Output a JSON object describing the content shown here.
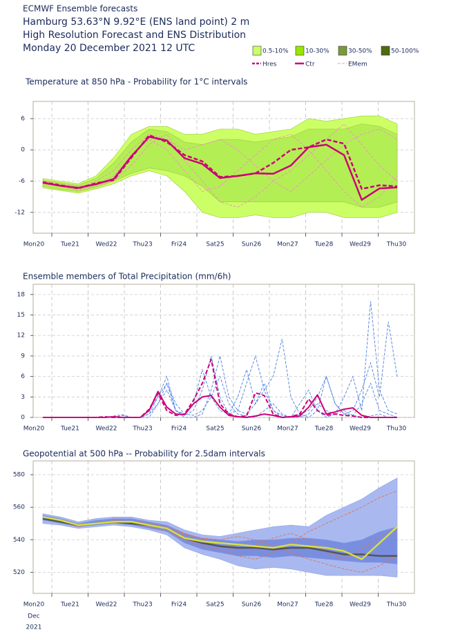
{
  "header": {
    "source": "ECMWF Ensemble forecasts",
    "location": "Hamburg 53.63°N 9.92°E (ENS land point) 2 m",
    "product": "High Resolution Forecast and ENS Distribution",
    "date": "Monday 20 December 2021 12 UTC"
  },
  "legend": {
    "shading": [
      {
        "name": "0.5-10%",
        "color": "#ccff66"
      },
      {
        "name": "10-30%",
        "color": "#99e600"
      },
      {
        "name": "30-50%",
        "color": "#7a9a3a"
      },
      {
        "name": "50-100%",
        "color": "#4d6b10"
      }
    ],
    "lines": [
      {
        "name": "Hres",
        "color": "#cc0077",
        "dash": true
      },
      {
        "name": "Ctr",
        "color": "#cc0077",
        "dash": false
      },
      {
        "name": "EMem",
        "color": "#f090c0",
        "dash": true
      }
    ]
  },
  "chart_data": [
    {
      "type": "band_line",
      "title": "Temperature at 850 hPa - Probability for 1°C intervals",
      "categories": [
        "Mon20",
        "Tue21",
        "Wed22",
        "Thu23",
        "Fri24",
        "Sat25",
        "Sun26",
        "Mon27",
        "Tue28",
        "Wed29",
        "Thu30"
      ],
      "category_colors": [
        "#1a2a5a",
        "#1a2a5a",
        "#1a2a5a",
        "#1a2a5a",
        "#1a2a5a",
        "#1a2a5a",
        "#dd0000",
        "#1a2a5a",
        "#1a2a5a",
        "#1a2a5a",
        "#1a2a5a"
      ],
      "x": [
        0,
        12,
        24,
        36,
        48,
        60,
        72,
        84,
        96,
        108,
        120,
        132,
        144,
        156,
        168,
        180,
        192,
        204,
        216,
        228,
        240
      ],
      "ylim": [
        -16,
        9.3
      ],
      "yticks": [
        6,
        0,
        -6,
        -12
      ],
      "grid": true,
      "bands": [
        {
          "color": "#ccff66",
          "lower": [
            -7.3,
            -7.8,
            -8.3,
            -7.5,
            -6.5,
            -5,
            -4,
            -5,
            -8,
            -12,
            -13,
            -13,
            -12.5,
            -13,
            -13,
            -12,
            -12,
            -13,
            -13,
            -13,
            -12
          ],
          "upper": [
            -5.5,
            -6,
            -6.5,
            -5,
            -1.5,
            3,
            4.5,
            4.5,
            3,
            3,
            4,
            4,
            3,
            3.5,
            4,
            6,
            5.5,
            6,
            6.5,
            6.5,
            5
          ]
        },
        {
          "color": "#b4ee55",
          "lower": [
            -7,
            -7.6,
            -8,
            -7.2,
            -6,
            -4.5,
            -3.5,
            -4,
            -5,
            -7,
            -10,
            -10,
            -10,
            -10,
            -10,
            -10,
            -10,
            -10,
            -11,
            -11,
            -10
          ],
          "upper": [
            -5.8,
            -6.3,
            -6.8,
            -5.5,
            -2.5,
            1.5,
            4,
            3.5,
            1.5,
            1,
            2,
            2,
            1.5,
            2,
            2.5,
            4,
            4,
            4,
            5,
            4.5,
            3
          ]
        }
      ],
      "members": [
        {
          "color": "#f090c0",
          "values": [
            -6,
            -7,
            -7.5,
            -6,
            -4,
            0,
            3,
            2,
            0,
            1,
            2,
            0,
            -3,
            -6,
            -8,
            -5,
            -2,
            1,
            3,
            4,
            2
          ]
        },
        {
          "color": "#f090c0",
          "values": [
            -6.5,
            -7,
            -7.8,
            -7,
            -6,
            -3,
            1,
            3,
            -2,
            -6,
            -10,
            -11,
            -9,
            -6,
            -4,
            -1,
            2,
            5,
            1,
            -3,
            -6
          ]
        },
        {
          "color": "#f090c0",
          "values": [
            -6,
            -6.5,
            -7,
            -6.5,
            -5,
            -1,
            2,
            0,
            -4,
            -8,
            -7,
            -4,
            -1,
            2,
            3,
            0,
            -4,
            -8,
            -11,
            -9,
            -5
          ]
        }
      ],
      "series": [
        {
          "color": "#cc0077",
          "dash": true,
          "values": [
            -6.2,
            -6.8,
            -7.4,
            -6.4,
            -5.8,
            -1.5,
            2.8,
            1.5,
            -1,
            -2.2,
            -5.2,
            -5,
            -4.5,
            -2.5,
            0,
            0.5,
            2,
            1.2,
            -7.5,
            -6.8,
            -7
          ]
        },
        {
          "color": "#cc0077",
          "dash": false,
          "values": [
            -6.3,
            -6.9,
            -7.3,
            -6.6,
            -5.6,
            -1.2,
            2.5,
            1.8,
            -1.6,
            -2.7,
            -5.4,
            -5,
            -4.5,
            -4.6,
            -3,
            0.5,
            1,
            -1,
            -9.6,
            -7.4,
            -7.2
          ]
        }
      ]
    },
    {
      "type": "line",
      "title": "Ensemble members of Total Precipitation (mm/6h)",
      "categories": [
        "Mon20",
        "Tue21",
        "Wed22",
        "Thu23",
        "Fri24",
        "Sat25",
        "Sun26",
        "Mon27",
        "Tue28",
        "Wed29",
        "Thu30"
      ],
      "category_colors": [
        "#1a2a5a",
        "#1a2a5a",
        "#1a2a5a",
        "#1a2a5a",
        "#1a2a5a",
        "#1a2a5a",
        "#dd0000",
        "#1a2a5a",
        "#1a2a5a",
        "#1a2a5a",
        "#1a2a5a"
      ],
      "x": [
        0,
        6,
        12,
        18,
        24,
        30,
        36,
        42,
        48,
        54,
        60,
        66,
        72,
        78,
        84,
        90,
        96,
        102,
        108,
        114,
        120,
        126,
        132,
        138,
        144,
        150,
        156,
        162,
        168,
        174,
        180,
        186,
        192,
        198,
        204,
        210,
        216,
        222,
        228,
        234,
        240
      ],
      "ylim": [
        0,
        19.5
      ],
      "yticks": [
        0,
        3,
        6,
        9,
        12,
        15,
        18
      ],
      "grid": true,
      "members": [
        {
          "color": "#4a7ee0",
          "values": [
            0,
            0,
            0,
            0,
            0,
            0,
            0,
            0,
            0.2,
            0.4,
            0,
            0,
            0.5,
            2,
            5,
            2,
            0.5,
            0.3,
            1,
            3,
            6,
            2,
            0.5,
            0.2,
            0,
            1,
            2,
            0.5,
            0,
            0,
            0.5,
            2,
            1,
            0.5,
            3,
            6,
            1,
            17,
            4,
            1,
            0.5
          ]
        },
        {
          "color": "#4a7ee0",
          "values": [
            0,
            0,
            0,
            0,
            0,
            0,
            0,
            0,
            0,
            0,
            0,
            0,
            1,
            3,
            6,
            1,
            0,
            0,
            0.5,
            4,
            9,
            3,
            1,
            0.5,
            2,
            5,
            1,
            0,
            0,
            0.5,
            1,
            3,
            6,
            2,
            0.5,
            1,
            4,
            8,
            3,
            14,
            6
          ]
        },
        {
          "color": "#4a7ee0",
          "values": [
            0,
            0,
            0,
            0,
            0,
            0,
            0,
            0,
            0,
            0.3,
            0,
            0,
            0,
            2,
            4,
            1,
            0.5,
            2,
            7,
            3,
            1,
            0.5,
            3,
            7,
            2,
            4,
            6,
            11.5,
            3,
            0.5,
            0,
            1,
            6,
            2,
            0.5,
            0.3,
            2,
            5,
            1,
            0.5,
            0
          ]
        },
        {
          "color": "#4a7ee0",
          "values": [
            0,
            0,
            0,
            0,
            0,
            0,
            0,
            0,
            0,
            0,
            0,
            0,
            0.5,
            3,
            5,
            1,
            0.3,
            1,
            4,
            9,
            3,
            0.5,
            1,
            5,
            9,
            4,
            1,
            0.3,
            0,
            2,
            4,
            1,
            0,
            0.5,
            1,
            0.3,
            0,
            0.2,
            0.5,
            0,
            0
          ]
        }
      ],
      "series": [
        {
          "color": "#cc0077",
          "dash": true,
          "values": [
            0,
            0,
            0,
            0,
            0,
            0,
            0,
            0.1,
            0,
            0,
            0,
            0,
            1.2,
            3.5,
            1,
            0.3,
            0.5,
            2.5,
            5,
            8.5,
            2,
            0.5,
            0.1,
            0.2,
            3.6,
            3.2,
            0.5,
            0,
            0.1,
            0.5,
            2.7,
            1,
            0.3,
            0.5,
            0.3,
            0.2,
            0,
            0,
            0,
            0,
            0
          ]
        },
        {
          "color": "#cc0077",
          "dash": false,
          "values": [
            0,
            0,
            0,
            0,
            0,
            0,
            0,
            0,
            0.1,
            0,
            0,
            0,
            1,
            3.8,
            1.5,
            0.5,
            0.4,
            2,
            3,
            3.2,
            1.5,
            0.3,
            0.1,
            0,
            0.2,
            0.5,
            0.3,
            0,
            0.1,
            0.2,
            1.5,
            3.3,
            0.5,
            0.8,
            1.2,
            1.4,
            0.3,
            0,
            0,
            0,
            0
          ]
        }
      ]
    },
    {
      "type": "band_line",
      "title": "Geopotential at 500 hPa -- Probability for 2.5dam intervals",
      "categories": [
        "Mon20",
        "Tue21",
        "Wed22",
        "Thu23",
        "Fri24",
        "Sat25",
        "Sun26",
        "Mon27",
        "Tue28",
        "Wed29",
        "Thu30"
      ],
      "category_colors": [
        "#1a2a5a",
        "#1a2a5a",
        "#1a2a5a",
        "#1a2a5a",
        "#1a2a5a",
        "#1a2a5a",
        "#dd0000",
        "#1a2a5a",
        "#1a2a5a",
        "#1a2a5a",
        "#1a2a5a"
      ],
      "x_note": [
        "Dec",
        "2021"
      ],
      "x": [
        0,
        12,
        24,
        36,
        48,
        60,
        72,
        84,
        96,
        108,
        120,
        132,
        144,
        156,
        168,
        180,
        192,
        204,
        216,
        228,
        240
      ],
      "ylim": [
        507,
        588.5
      ],
      "yticks": [
        520,
        540,
        560,
        580
      ],
      "grid": true,
      "bands": [
        {
          "color": "#a9b9f0",
          "lower": [
            550,
            549,
            547,
            548,
            549,
            548,
            546,
            543,
            535,
            531,
            528,
            524,
            522,
            523,
            522,
            520,
            518,
            518,
            518,
            518,
            517
          ],
          "upper": [
            556,
            554,
            551,
            553,
            554,
            554,
            552,
            551,
            546,
            543,
            542,
            544,
            546,
            548,
            549,
            548,
            555,
            560,
            565,
            572,
            578
          ]
        },
        {
          "color": "#7a8ee0",
          "lower": [
            552,
            550,
            548,
            549,
            550,
            549,
            547,
            545,
            538,
            534,
            532,
            530,
            530,
            529,
            530,
            529,
            528,
            527,
            526,
            526,
            525
          ],
          "upper": [
            555,
            553,
            550,
            552,
            553,
            553,
            551,
            549,
            544,
            541,
            540,
            539,
            540,
            540,
            541,
            541,
            540,
            538,
            540,
            545,
            548
          ]
        }
      ],
      "members": [
        {
          "color": "#e8704a",
          "values": [
            554,
            552,
            549,
            550,
            551,
            550,
            548,
            545,
            540,
            536,
            534,
            530,
            528,
            532,
            538,
            545,
            550,
            555,
            560,
            566,
            570
          ]
        },
        {
          "color": "#e8704a",
          "values": [
            553,
            551,
            549,
            550,
            551,
            551,
            549,
            547,
            543,
            541,
            540,
            542,
            540,
            536,
            532,
            528,
            525,
            522,
            520,
            524,
            530
          ]
        },
        {
          "color": "#e8704a",
          "values": [
            554,
            551,
            548,
            550,
            552,
            551,
            550,
            548,
            544,
            540,
            536,
            534,
            537,
            541,
            544,
            540,
            532,
            528,
            534,
            542,
            546
          ]
        }
      ],
      "series": [
        {
          "color": "#555555",
          "dash": false,
          "values": [
            553,
            551,
            549,
            550,
            551,
            550,
            549,
            547,
            541,
            538,
            536,
            535,
            535,
            534,
            535,
            535,
            533,
            531,
            531,
            530,
            530
          ]
        },
        {
          "color": "#d8df40",
          "dash": false,
          "values": [
            554,
            552,
            549,
            550,
            551,
            551,
            549,
            547,
            541,
            539,
            538,
            537,
            536,
            535,
            537,
            536,
            535,
            533,
            528,
            538,
            548
          ]
        }
      ]
    }
  ]
}
